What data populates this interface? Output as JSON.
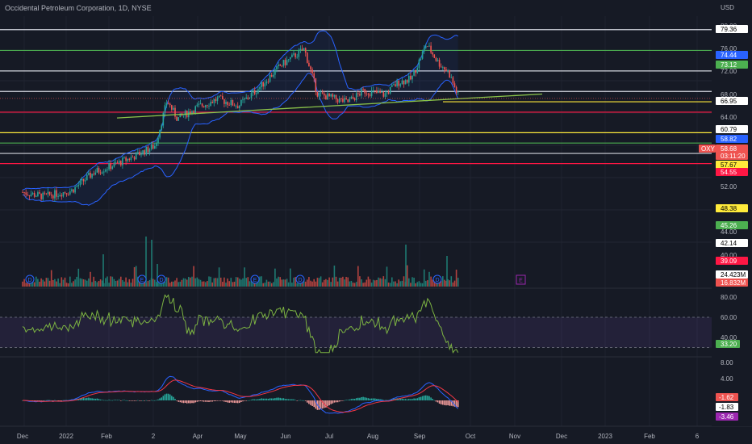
{
  "title": "Occidental Petroleum Corporation, 1D, NYSE",
  "currency": "USD",
  "colors": {
    "background": "#161a25",
    "up": "#26a69a",
    "down": "#ef5350",
    "bollinger": "#2962ff",
    "trendline": "#8bc34a",
    "rsi_line": "#7cb342",
    "macd_line": "#2962ff",
    "signal_line": "#f23645",
    "axis_text": "#b2b5be"
  },
  "price_axis": {
    "ticks": [
      "80.00",
      "76.00",
      "72.00",
      "68.00",
      "64.00",
      "52.00",
      "44.00",
      "40.00"
    ],
    "labels": [
      {
        "text": "79.36",
        "bg": "#ffffff",
        "fg": "#000000"
      },
      {
        "text": "74.44",
        "bg": "#2962ff",
        "fg": "#ffffff"
      },
      {
        "text": "73.12",
        "bg": "#4caf50",
        "fg": "#ffffff"
      },
      {
        "text": "66.95",
        "bg": "#ffffff",
        "fg": "#000000"
      },
      {
        "text": "60.79",
        "bg": "#ffffff",
        "fg": "#000000"
      },
      {
        "text": "58.82",
        "bg": "#2962ff",
        "fg": "#ffffff"
      },
      {
        "text": "58.68",
        "bg": "#ef5350",
        "fg": "#ffffff"
      },
      {
        "text": "03:11:20",
        "bg": "#ef5350",
        "fg": "#ffffff"
      },
      {
        "text": "57.67",
        "bg": "#ffeb3b",
        "fg": "#000000"
      },
      {
        "text": "54.55",
        "bg": "#ff1744",
        "fg": "#ffffff"
      },
      {
        "text": "48.38",
        "bg": "#ffeb3b",
        "fg": "#000000"
      },
      {
        "text": "45.26",
        "bg": "#4caf50",
        "fg": "#ffffff"
      },
      {
        "text": "42.14",
        "bg": "#ffffff",
        "fg": "#000000"
      },
      {
        "text": "39.09",
        "bg": "#ff1744",
        "fg": "#ffffff"
      },
      {
        "text": "24.423M",
        "bg": "#ffffff",
        "fg": "#000000"
      },
      {
        "text": "16.832M",
        "bg": "#ef5350",
        "fg": "#ffffff"
      }
    ],
    "symbol_tag": "OXY"
  },
  "horizontal_levels": [
    {
      "value": 79.36,
      "color": "#d1d4dc"
    },
    {
      "value": 73.12,
      "color": "#4caf50"
    },
    {
      "value": 66.95,
      "color": "#d1d4dc"
    },
    {
      "value": 60.79,
      "color": "#d1d4dc"
    },
    {
      "value": 57.67,
      "color": "#ffeb3b",
      "from": "Sep"
    },
    {
      "value": 54.55,
      "color": "#ff1744"
    },
    {
      "value": 48.38,
      "color": "#ffeb3b"
    },
    {
      "value": 45.26,
      "color": "#4caf50"
    },
    {
      "value": 42.14,
      "color": "#d1d4dc"
    },
    {
      "value": 39.09,
      "color": "#ff1744"
    }
  ],
  "rsi_axis": {
    "ticks": [
      "80.00",
      "60.00",
      "40.00"
    ],
    "label": "33.20"
  },
  "macd_axis": {
    "ticks": [
      "8.00",
      "4.00"
    ],
    "labels": [
      "-1.62",
      "-1.83",
      "-3.46"
    ]
  },
  "time_axis": [
    "Dec",
    "2022",
    "Feb",
    "2",
    "Apr",
    "May",
    "Jun",
    "Jul",
    "Aug",
    "Sep",
    "Oct",
    "Nov",
    "Dec",
    "2023",
    "Feb",
    "6"
  ],
  "event_markers": {
    "dividend": "D",
    "earnings": "E"
  },
  "chart_data": {
    "type": "candlestick",
    "symbol": "OXY",
    "interval": "1D",
    "exchange": "NYSE",
    "price_ylim": [
      38,
      81
    ],
    "close_series": {
      "dates": [
        "2021-12-01",
        "2021-12-15",
        "2022-01-03",
        "2022-01-18",
        "2022-02-01",
        "2022-02-15",
        "2022-02-28",
        "2022-03-08",
        "2022-03-15",
        "2022-03-28",
        "2022-04-11",
        "2022-04-25",
        "2022-05-09",
        "2022-05-23",
        "2022-05-31",
        "2022-06-08",
        "2022-06-17",
        "2022-06-27",
        "2022-07-07",
        "2022-07-18",
        "2022-08-01",
        "2022-08-10",
        "2022-08-19",
        "2022-08-29",
        "2022-09-06",
        "2022-09-13",
        "2022-09-20"
      ],
      "values": [
        30.5,
        29.2,
        31.0,
        36.5,
        38.8,
        41.5,
        44.5,
        58.0,
        52.5,
        56.0,
        58.5,
        56.5,
        62.0,
        68.5,
        71.0,
        73.5,
        60.0,
        58.8,
        57.5,
        61.0,
        59.8,
        63.5,
        64.5,
        75.0,
        69.5,
        66.5,
        58.68
      ]
    },
    "last_price": 58.68,
    "trendline": {
      "start": {
        "date": "2022-02-08",
        "value": 52.8
      },
      "end": {
        "date": "2022-10-28",
        "value": 60.0
      }
    },
    "volume": {
      "last": "16.832M",
      "average": "24.423M"
    },
    "rsi": {
      "ticks": [
        80,
        60,
        40
      ],
      "upper": 60,
      "lower": 30,
      "last": 33.2
    },
    "macd": {
      "values": [
        -1.62,
        -1.83,
        -3.46
      ],
      "ticks": [
        8,
        4
      ]
    }
  }
}
